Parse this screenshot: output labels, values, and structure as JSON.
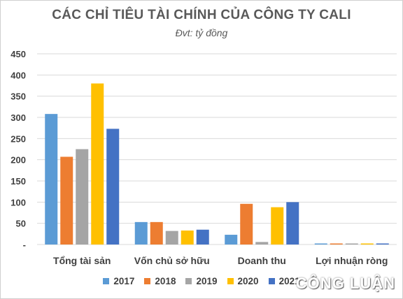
{
  "chart_data": {
    "type": "bar",
    "title": "CÁC CHỈ TIÊU TÀI CHÍNH CỦA CÔNG TY CALI",
    "subtitle": "Đvt: tỷ đồng",
    "categories": [
      "Tổng tài sản",
      "Vốn chủ sở hữu",
      "Doanh thu",
      "Lợi nhuận ròng"
    ],
    "series": [
      {
        "name": "2017",
        "color": "#5B9BD5",
        "values": [
          308,
          53,
          23,
          1
        ]
      },
      {
        "name": "2018",
        "color": "#ED7D31",
        "values": [
          207,
          53,
          96,
          1
        ]
      },
      {
        "name": "2019",
        "color": "#A5A5A5",
        "values": [
          225,
          32,
          6,
          1
        ]
      },
      {
        "name": "2020",
        "color": "#FFC000",
        "values": [
          380,
          33,
          88,
          1
        ]
      },
      {
        "name": "2021",
        "color": "#4472C4",
        "values": [
          273,
          35,
          100,
          1
        ]
      }
    ],
    "yticks": [
      "-",
      "50",
      "100",
      "150",
      "200",
      "250",
      "300",
      "350",
      "400",
      "450"
    ],
    "ylim": [
      0,
      450
    ],
    "grid": true,
    "legend_position": "bottom"
  },
  "watermark": "CÔNG LUẬN"
}
